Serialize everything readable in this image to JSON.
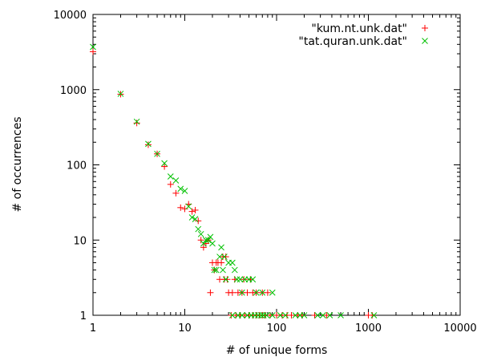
{
  "chart_data": {
    "type": "scatter",
    "title": "",
    "xlabel": "# of unique forms",
    "ylabel": "# of occurrences",
    "xscale": "log",
    "yscale": "log",
    "xlim": [
      1,
      10000
    ],
    "ylim": [
      1,
      10000
    ],
    "x_ticks": [
      1,
      10,
      100,
      1000,
      10000
    ],
    "y_ticks": [
      1,
      10,
      100,
      1000,
      10000
    ],
    "x_tick_labels": [
      "1",
      "10",
      "100",
      "1000",
      "10000"
    ],
    "y_tick_labels": [
      "1",
      "10",
      "100",
      "1000",
      "10000"
    ],
    "grid": false,
    "legend_position": "top-right",
    "series": [
      {
        "name": "\"kum.nt.unk.dat\"",
        "marker": "plus",
        "color": "#ff0000",
        "points": [
          [
            1,
            3200
          ],
          [
            2,
            870
          ],
          [
            3,
            360
          ],
          [
            4,
            185
          ],
          [
            5,
            140
          ],
          [
            6,
            95
          ],
          [
            7,
            55
          ],
          [
            8,
            42
          ],
          [
            9,
            27
          ],
          [
            10,
            26
          ],
          [
            11,
            30
          ],
          [
            12,
            24
          ],
          [
            13,
            25
          ],
          [
            14,
            18
          ],
          [
            15,
            10
          ],
          [
            16,
            8
          ],
          [
            17,
            9
          ],
          [
            18,
            10
          ],
          [
            19,
            2
          ],
          [
            20,
            5
          ],
          [
            21,
            4
          ],
          [
            22,
            5
          ],
          [
            23,
            5
          ],
          [
            24,
            3
          ],
          [
            25,
            5
          ],
          [
            26,
            6
          ],
          [
            27,
            3
          ],
          [
            28,
            6
          ],
          [
            29,
            3
          ],
          [
            30,
            2
          ],
          [
            33,
            2
          ],
          [
            35,
            3
          ],
          [
            38,
            2
          ],
          [
            42,
            2
          ],
          [
            44,
            3
          ],
          [
            48,
            2
          ],
          [
            52,
            3
          ],
          [
            55,
            2
          ],
          [
            60,
            2
          ],
          [
            70,
            2
          ],
          [
            80,
            2
          ],
          [
            32,
            1
          ],
          [
            36,
            1
          ],
          [
            40,
            1
          ],
          [
            45,
            1
          ],
          [
            50,
            1
          ],
          [
            55,
            1
          ],
          [
            60,
            1
          ],
          [
            65,
            1
          ],
          [
            70,
            1
          ],
          [
            75,
            1
          ],
          [
            85,
            1
          ],
          [
            100,
            1
          ],
          [
            115,
            1
          ],
          [
            130,
            1
          ],
          [
            145,
            1
          ],
          [
            170,
            1
          ],
          [
            190,
            1
          ],
          [
            260,
            1
          ],
          [
            350,
            1
          ],
          [
            1000,
            1
          ],
          [
            1100,
            1
          ]
        ]
      },
      {
        "name": "\"tat.quran.unk.dat\"",
        "marker": "cross",
        "color": "#00c000",
        "points": [
          [
            1,
            3700
          ],
          [
            2,
            880
          ],
          [
            3,
            375
          ],
          [
            4,
            190
          ],
          [
            5,
            140
          ],
          [
            6,
            105
          ],
          [
            7,
            70
          ],
          [
            8,
            62
          ],
          [
            9,
            48
          ],
          [
            10,
            45
          ],
          [
            11,
            28
          ],
          [
            12,
            20
          ],
          [
            13,
            19
          ],
          [
            14,
            14
          ],
          [
            15,
            12
          ],
          [
            16,
            9
          ],
          [
            17,
            10
          ],
          [
            18,
            10
          ],
          [
            19,
            11
          ],
          [
            20,
            9
          ],
          [
            21,
            4
          ],
          [
            22,
            4
          ],
          [
            24,
            6
          ],
          [
            25,
            8
          ],
          [
            26,
            4
          ],
          [
            27,
            6
          ],
          [
            28,
            3
          ],
          [
            30,
            5
          ],
          [
            33,
            5
          ],
          [
            35,
            4
          ],
          [
            37,
            3
          ],
          [
            40,
            3
          ],
          [
            42,
            2
          ],
          [
            45,
            3
          ],
          [
            50,
            3
          ],
          [
            55,
            3
          ],
          [
            60,
            2
          ],
          [
            70,
            2
          ],
          [
            90,
            2
          ],
          [
            33,
            1
          ],
          [
            38,
            1
          ],
          [
            42,
            1
          ],
          [
            48,
            1
          ],
          [
            53,
            1
          ],
          [
            58,
            1
          ],
          [
            63,
            1
          ],
          [
            68,
            1
          ],
          [
            72,
            1
          ],
          [
            78,
            1
          ],
          [
            90,
            1
          ],
          [
            110,
            1
          ],
          [
            125,
            1
          ],
          [
            160,
            1
          ],
          [
            180,
            1
          ],
          [
            200,
            1
          ],
          [
            280,
            1
          ],
          [
            320,
            1
          ],
          [
            380,
            1
          ],
          [
            500,
            1
          ],
          [
            1150,
            1
          ]
        ]
      }
    ]
  }
}
